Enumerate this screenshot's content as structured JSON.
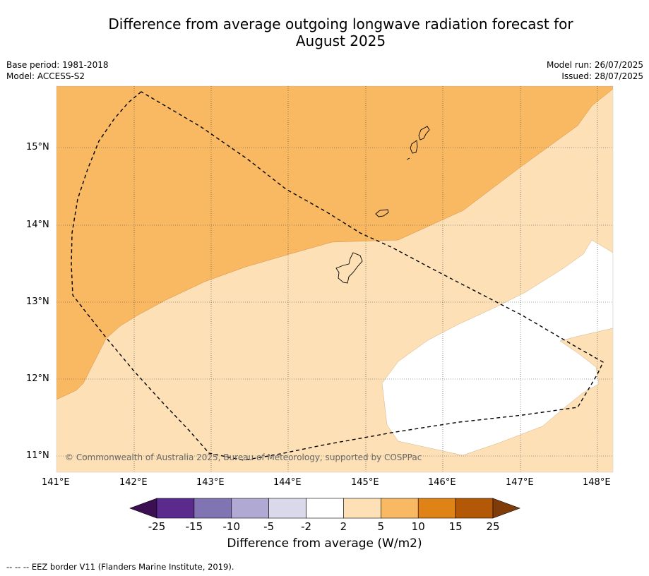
{
  "title_line1": "Difference from average outgoing longwave radiation forecast for",
  "title_line2": "August 2025",
  "base_period": "Base period: 1981-2018",
  "model": "Model: ACCESS-S2",
  "model_run": "Model run: 26/07/2025",
  "issued": "Issued: 28/07/2025",
  "map": {
    "lon_ticks": [
      "141°E",
      "142°E",
      "143°E",
      "144°E",
      "145°E",
      "146°E",
      "147°E",
      "148°E"
    ],
    "lat_ticks": [
      "15°N",
      "14°N",
      "13°N",
      "12°N",
      "11°N"
    ],
    "copyright": "© Commonwealth of Australia 2025, Bureau of Meteorology, supported by COSPPac"
  },
  "colorbar": {
    "label": "Difference from average (W/m2)",
    "ticks": [
      "-25",
      "-15",
      "-10",
      "-5",
      "-2",
      "2",
      "5",
      "10",
      "15",
      "25"
    ],
    "colors": [
      "#3b0f52",
      "#5a2a8c",
      "#8174b3",
      "#b0a9d3",
      "#d9d9ec",
      "#ffffff",
      "#fde0b6",
      "#f9b862",
      "#e08316",
      "#b35806",
      "#7f3b08"
    ]
  },
  "footnote": "--  --  -- EEZ border V11 (Flanders Marine Institute, 2019)."
}
